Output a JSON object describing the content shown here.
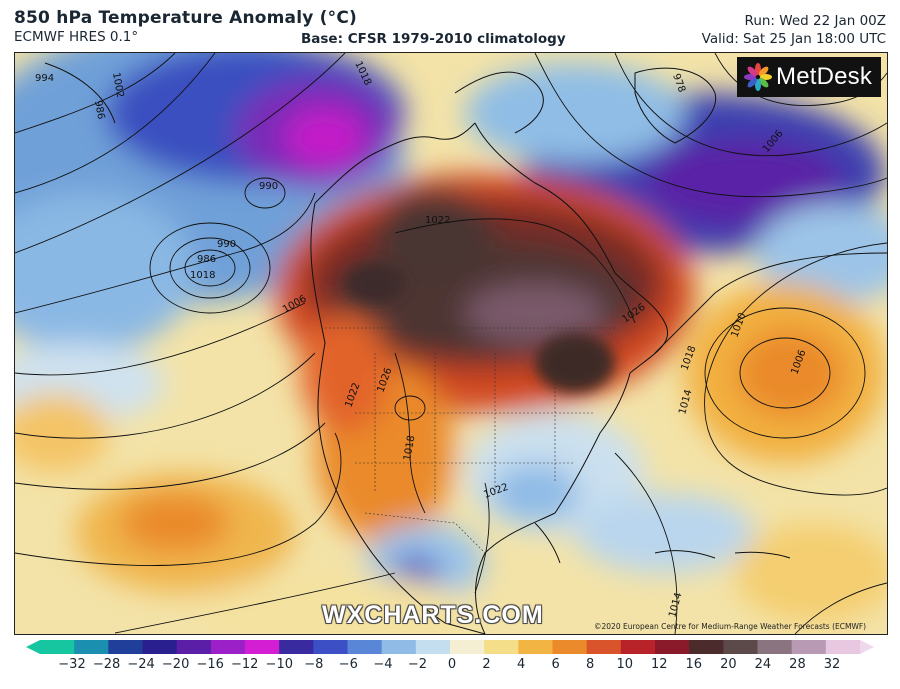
{
  "header": {
    "title": "850 hPa Temperature Anomaly (°C)",
    "model": "ECMWF HRES 0.1°",
    "base": "Base: CFSR 1979-2010 climatology",
    "run": "Run: Wed 22 Jan 00Z",
    "valid": "Valid: Sat 25 Jan 18:00 UTC"
  },
  "logo": {
    "text": "MetDesk"
  },
  "watermark": "WXCHARTS.COM",
  "copyright": "©2020 European Centre for Medium-Range Weather Forecasts (ECMWF)",
  "isobar_labels": [
    "994",
    "1002",
    "986",
    "1018",
    "978",
    "1006",
    "990",
    "990",
    "986",
    "1006",
    "1022",
    "1026",
    "1018",
    "1010",
    "1006",
    "1014",
    "1022",
    "1026",
    "1018",
    "1022",
    "1018",
    "1014"
  ],
  "colorbar": {
    "ticks": [
      "−32",
      "−28",
      "−24",
      "−20",
      "−16",
      "−12",
      "−10",
      "−8",
      "−6",
      "−4",
      "−2",
      "0",
      "2",
      "4",
      "6",
      "8",
      "10",
      "12",
      "16",
      "20",
      "24",
      "28",
      "32"
    ],
    "colors": [
      "#16c6a0",
      "#1a8fb0",
      "#1f3f9a",
      "#2a1f8f",
      "#5a1fa6",
      "#9c20c8",
      "#d41ed4",
      "#3a2aa0",
      "#3d4fc4",
      "#5a86d8",
      "#8fbbe6",
      "#c4def0",
      "#f4eed2",
      "#f5de8a",
      "#f2b544",
      "#ea8a2a",
      "#d9542a",
      "#b8232a",
      "#8a1a2a",
      "#4b2b2c",
      "#5c4a4a",
      "#8a7480",
      "#b89ab4",
      "#e8c8e0"
    ]
  }
}
